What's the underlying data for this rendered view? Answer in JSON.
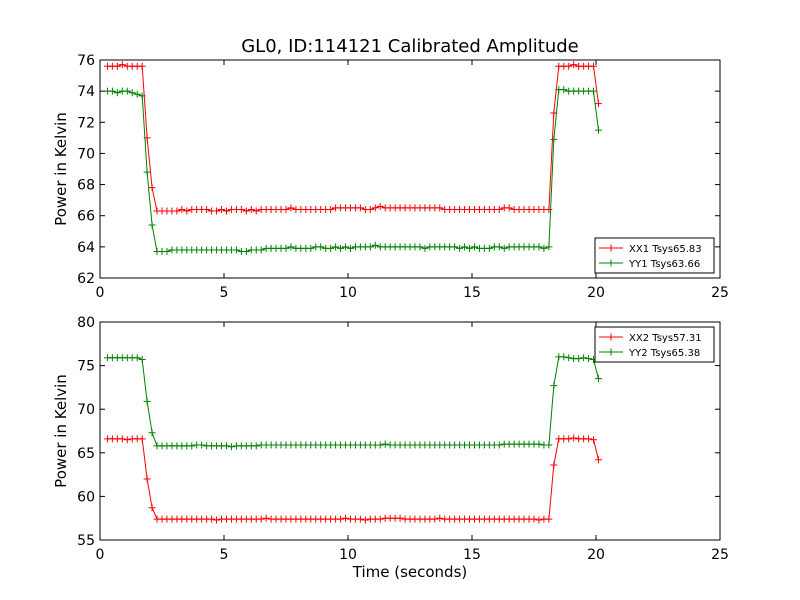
{
  "chart_data": [
    {
      "type": "line",
      "title": "GL0, ID:114121 Calibrated Amplitude",
      "xlabel": "",
      "ylabel": "Power in Kelvin",
      "xlim": [
        0,
        25
      ],
      "ylim": [
        62,
        76
      ],
      "xticks": [
        "0",
        "5",
        "10",
        "15",
        "20",
        "25"
      ],
      "yticks": [
        "62",
        "64",
        "66",
        "68",
        "70",
        "72",
        "74",
        "76"
      ],
      "grid": false,
      "legend": "lower-right",
      "colors": {
        "XX1 Tsys65.83": "#ff0000",
        "YY1 Tsys63.66": "#008000"
      },
      "series": [
        {
          "name": "XX1 Tsys65.83",
          "x": [
            0.3,
            0.5,
            0.7,
            0.9,
            1.1,
            1.3,
            1.5,
            1.7,
            1.9,
            2.1,
            2.3,
            2.5,
            2.7,
            2.9,
            3.1,
            3.3,
            3.5,
            3.7,
            3.9,
            4.1,
            4.3,
            4.5,
            4.7,
            4.9,
            5.1,
            5.3,
            5.5,
            5.7,
            5.9,
            6.1,
            6.3,
            6.5,
            6.7,
            6.9,
            7.1,
            7.3,
            7.5,
            7.7,
            7.9,
            8.1,
            8.3,
            8.5,
            8.7,
            8.9,
            9.1,
            9.3,
            9.5,
            9.7,
            9.9,
            10.1,
            10.3,
            10.5,
            10.7,
            10.9,
            11.1,
            11.3,
            11.5,
            11.7,
            11.9,
            12.1,
            12.3,
            12.5,
            12.7,
            12.9,
            13.1,
            13.3,
            13.5,
            13.7,
            13.9,
            14.1,
            14.3,
            14.5,
            14.7,
            14.9,
            15.1,
            15.3,
            15.5,
            15.7,
            15.9,
            16.1,
            16.3,
            16.5,
            16.7,
            16.9,
            17.1,
            17.3,
            17.5,
            17.7,
            17.9,
            18.1,
            18.3,
            18.5,
            18.7,
            18.9,
            19.1,
            19.3,
            19.5,
            19.7,
            19.9,
            20.1
          ],
          "values": [
            75.6,
            75.6,
            75.6,
            75.7,
            75.6,
            75.6,
            75.6,
            75.6,
            71.0,
            67.8,
            66.3,
            66.3,
            66.3,
            66.3,
            66.3,
            66.4,
            66.3,
            66.4,
            66.4,
            66.4,
            66.4,
            66.3,
            66.3,
            66.4,
            66.3,
            66.4,
            66.4,
            66.4,
            66.3,
            66.4,
            66.3,
            66.4,
            66.4,
            66.4,
            66.4,
            66.4,
            66.4,
            66.5,
            66.4,
            66.4,
            66.4,
            66.4,
            66.4,
            66.4,
            66.4,
            66.4,
            66.5,
            66.5,
            66.5,
            66.5,
            66.5,
            66.5,
            66.4,
            66.4,
            66.5,
            66.6,
            66.5,
            66.5,
            66.5,
            66.5,
            66.5,
            66.5,
            66.5,
            66.5,
            66.5,
            66.5,
            66.5,
            66.5,
            66.4,
            66.4,
            66.4,
            66.4,
            66.4,
            66.4,
            66.4,
            66.4,
            66.4,
            66.4,
            66.4,
            66.4,
            66.5,
            66.5,
            66.4,
            66.4,
            66.4,
            66.4,
            66.4,
            66.4,
            66.4,
            66.4,
            72.6,
            75.6,
            75.6,
            75.6,
            75.7,
            75.6,
            75.6,
            75.6,
            75.6,
            73.2
          ]
        },
        {
          "name": "YY1 Tsys63.66",
          "x": [
            0.3,
            0.5,
            0.7,
            0.9,
            1.1,
            1.3,
            1.5,
            1.7,
            1.9,
            2.1,
            2.3,
            2.5,
            2.7,
            2.9,
            3.1,
            3.3,
            3.5,
            3.7,
            3.9,
            4.1,
            4.3,
            4.5,
            4.7,
            4.9,
            5.1,
            5.3,
            5.5,
            5.7,
            5.9,
            6.1,
            6.3,
            6.5,
            6.7,
            6.9,
            7.1,
            7.3,
            7.5,
            7.7,
            7.9,
            8.1,
            8.3,
            8.5,
            8.7,
            8.9,
            9.1,
            9.3,
            9.5,
            9.7,
            9.9,
            10.1,
            10.3,
            10.5,
            10.7,
            10.9,
            11.1,
            11.3,
            11.5,
            11.7,
            11.9,
            12.1,
            12.3,
            12.5,
            12.7,
            12.9,
            13.1,
            13.3,
            13.5,
            13.7,
            13.9,
            14.1,
            14.3,
            14.5,
            14.7,
            14.9,
            15.1,
            15.3,
            15.5,
            15.7,
            15.9,
            16.1,
            16.3,
            16.5,
            16.7,
            16.9,
            17.1,
            17.3,
            17.5,
            17.7,
            17.9,
            18.1,
            18.3,
            18.5,
            18.7,
            18.9,
            19.1,
            19.3,
            19.5,
            19.7,
            19.9,
            20.1
          ],
          "values": [
            74.0,
            74.0,
            73.9,
            74.0,
            74.0,
            73.9,
            73.8,
            73.7,
            68.8,
            65.4,
            63.7,
            63.7,
            63.7,
            63.8,
            63.8,
            63.8,
            63.8,
            63.8,
            63.8,
            63.8,
            63.8,
            63.8,
            63.8,
            63.8,
            63.8,
            63.8,
            63.8,
            63.7,
            63.7,
            63.8,
            63.8,
            63.8,
            63.9,
            63.9,
            63.9,
            63.9,
            63.9,
            64.0,
            63.9,
            63.9,
            63.9,
            63.9,
            64.0,
            64.0,
            63.9,
            63.9,
            64.0,
            63.9,
            64.0,
            63.9,
            64.0,
            64.0,
            64.0,
            64.0,
            64.1,
            64.0,
            64.0,
            64.0,
            64.0,
            64.0,
            64.0,
            64.0,
            64.0,
            64.0,
            63.9,
            64.0,
            64.0,
            64.0,
            64.0,
            64.0,
            64.0,
            63.9,
            64.0,
            63.9,
            64.0,
            63.9,
            63.9,
            63.9,
            64.0,
            64.0,
            63.9,
            64.0,
            64.0,
            64.0,
            64.0,
            64.0,
            64.0,
            64.0,
            63.9,
            64.0,
            70.9,
            74.1,
            74.1,
            74.0,
            74.0,
            74.0,
            74.0,
            74.0,
            74.0,
            71.5
          ]
        }
      ]
    },
    {
      "type": "line",
      "title": "",
      "xlabel": "Time (seconds)",
      "ylabel": "Power in Kelvin",
      "xlim": [
        0,
        25
      ],
      "ylim": [
        55,
        80
      ],
      "xticks": [
        "0",
        "5",
        "10",
        "15",
        "20",
        "25"
      ],
      "yticks": [
        "55",
        "60",
        "65",
        "70",
        "75",
        "80"
      ],
      "grid": false,
      "legend": "upper-right",
      "colors": {
        "XX2 Tsys57.31": "#ff0000",
        "YY2 Tsys65.38": "#008000"
      },
      "series": [
        {
          "name": "XX2 Tsys57.31",
          "x": [
            0.3,
            0.5,
            0.7,
            0.9,
            1.1,
            1.3,
            1.5,
            1.7,
            1.9,
            2.1,
            2.3,
            2.5,
            2.7,
            2.9,
            3.1,
            3.3,
            3.5,
            3.7,
            3.9,
            4.1,
            4.3,
            4.5,
            4.7,
            4.9,
            5.1,
            5.3,
            5.5,
            5.7,
            5.9,
            6.1,
            6.3,
            6.5,
            6.7,
            6.9,
            7.1,
            7.3,
            7.5,
            7.7,
            7.9,
            8.1,
            8.3,
            8.5,
            8.7,
            8.9,
            9.1,
            9.3,
            9.5,
            9.7,
            9.9,
            10.1,
            10.3,
            10.5,
            10.7,
            10.9,
            11.1,
            11.3,
            11.5,
            11.7,
            11.9,
            12.1,
            12.3,
            12.5,
            12.7,
            12.9,
            13.1,
            13.3,
            13.5,
            13.7,
            13.9,
            14.1,
            14.3,
            14.5,
            14.7,
            14.9,
            15.1,
            15.3,
            15.5,
            15.7,
            15.9,
            16.1,
            16.3,
            16.5,
            16.7,
            16.9,
            17.1,
            17.3,
            17.5,
            17.7,
            17.9,
            18.1,
            18.3,
            18.5,
            18.7,
            18.9,
            19.1,
            19.3,
            19.5,
            19.7,
            19.9,
            20.1
          ],
          "values": [
            66.6,
            66.6,
            66.6,
            66.6,
            66.5,
            66.6,
            66.6,
            66.6,
            62.0,
            58.7,
            57.4,
            57.4,
            57.4,
            57.4,
            57.4,
            57.4,
            57.4,
            57.4,
            57.4,
            57.4,
            57.4,
            57.4,
            57.3,
            57.4,
            57.4,
            57.4,
            57.4,
            57.4,
            57.4,
            57.4,
            57.4,
            57.4,
            57.5,
            57.4,
            57.4,
            57.4,
            57.4,
            57.4,
            57.4,
            57.4,
            57.4,
            57.4,
            57.4,
            57.4,
            57.4,
            57.4,
            57.4,
            57.4,
            57.5,
            57.4,
            57.4,
            57.4,
            57.3,
            57.4,
            57.4,
            57.4,
            57.5,
            57.5,
            57.5,
            57.5,
            57.4,
            57.4,
            57.4,
            57.4,
            57.4,
            57.4,
            57.4,
            57.5,
            57.4,
            57.4,
            57.4,
            57.4,
            57.4,
            57.4,
            57.4,
            57.4,
            57.4,
            57.4,
            57.4,
            57.4,
            57.4,
            57.4,
            57.4,
            57.4,
            57.4,
            57.4,
            57.4,
            57.3,
            57.4,
            57.4,
            63.6,
            66.6,
            66.6,
            66.6,
            66.7,
            66.6,
            66.6,
            66.6,
            66.5,
            64.2
          ]
        },
        {
          "name": "YY2 Tsys65.38",
          "x": [
            0.3,
            0.5,
            0.7,
            0.9,
            1.1,
            1.3,
            1.5,
            1.7,
            1.9,
            2.1,
            2.3,
            2.5,
            2.7,
            2.9,
            3.1,
            3.3,
            3.5,
            3.7,
            3.9,
            4.1,
            4.3,
            4.5,
            4.7,
            4.9,
            5.1,
            5.3,
            5.5,
            5.7,
            5.9,
            6.1,
            6.3,
            6.5,
            6.7,
            6.9,
            7.1,
            7.3,
            7.5,
            7.7,
            7.9,
            8.1,
            8.3,
            8.5,
            8.7,
            8.9,
            9.1,
            9.3,
            9.5,
            9.7,
            9.9,
            10.1,
            10.3,
            10.5,
            10.7,
            10.9,
            11.1,
            11.3,
            11.5,
            11.7,
            11.9,
            12.1,
            12.3,
            12.5,
            12.7,
            12.9,
            13.1,
            13.3,
            13.5,
            13.7,
            13.9,
            14.1,
            14.3,
            14.5,
            14.7,
            14.9,
            15.1,
            15.3,
            15.5,
            15.7,
            15.9,
            16.1,
            16.3,
            16.5,
            16.7,
            16.9,
            17.1,
            17.3,
            17.5,
            17.7,
            17.9,
            18.1,
            18.3,
            18.5,
            18.7,
            18.9,
            19.1,
            19.3,
            19.5,
            19.7,
            19.9,
            20.1
          ],
          "values": [
            75.9,
            75.9,
            75.9,
            75.9,
            75.9,
            75.9,
            75.9,
            75.7,
            70.9,
            67.3,
            65.8,
            65.8,
            65.8,
            65.8,
            65.8,
            65.8,
            65.8,
            65.8,
            65.9,
            65.9,
            65.8,
            65.8,
            65.8,
            65.8,
            65.8,
            65.7,
            65.8,
            65.8,
            65.8,
            65.8,
            65.8,
            65.9,
            65.9,
            65.9,
            65.9,
            65.9,
            65.9,
            65.9,
            65.9,
            65.9,
            65.9,
            65.9,
            65.9,
            65.9,
            65.9,
            65.9,
            65.9,
            65.9,
            65.9,
            65.9,
            65.9,
            65.9,
            65.9,
            65.9,
            65.9,
            65.9,
            66.0,
            65.9,
            65.9,
            65.9,
            65.9,
            65.9,
            65.9,
            65.9,
            65.9,
            65.9,
            65.9,
            65.9,
            65.9,
            65.9,
            65.9,
            65.9,
            65.9,
            65.9,
            65.9,
            65.9,
            65.9,
            65.9,
            65.9,
            65.9,
            66.0,
            66.0,
            66.0,
            66.0,
            66.0,
            66.0,
            66.0,
            66.0,
            65.9,
            65.9,
            72.7,
            76.0,
            76.0,
            75.9,
            75.8,
            75.8,
            75.9,
            75.8,
            75.7,
            73.5
          ]
        }
      ]
    }
  ]
}
